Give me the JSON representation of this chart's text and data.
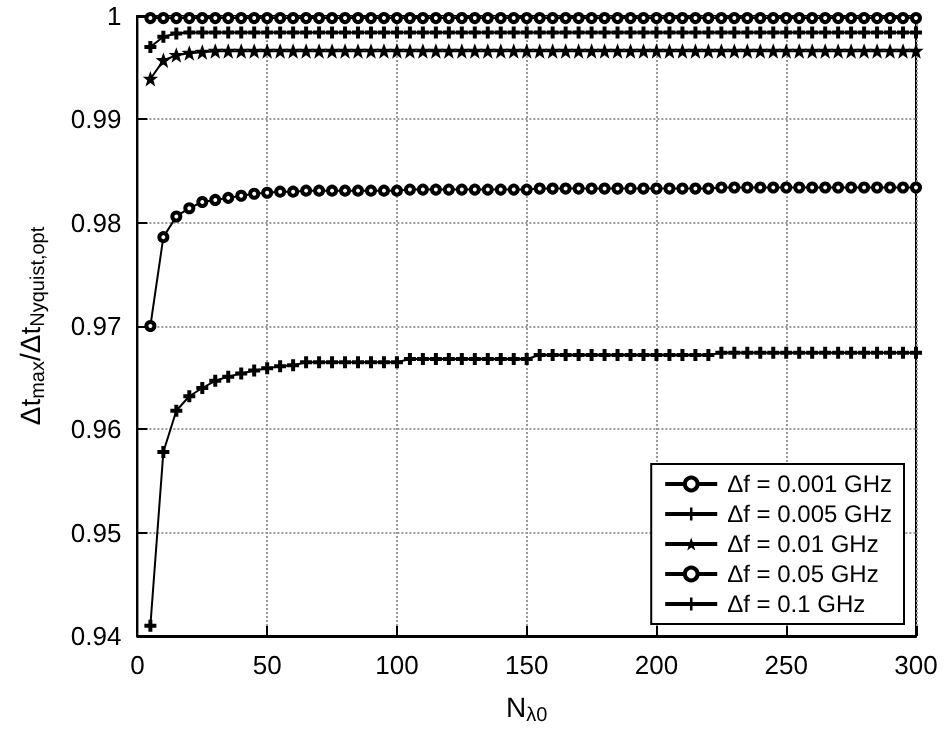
{
  "chart_data": {
    "type": "line",
    "xlabel": "N$_{λ0}$",
    "ylabel": "Δt$_{max}$/Δt$_{Nyquist,opt}$",
    "x": [
      5,
      10,
      15,
      20,
      25,
      30,
      35,
      40,
      45,
      50,
      55,
      60,
      65,
      70,
      75,
      80,
      85,
      90,
      95,
      100,
      105,
      110,
      115,
      120,
      125,
      130,
      135,
      140,
      145,
      150,
      155,
      160,
      165,
      170,
      175,
      180,
      185,
      190,
      195,
      200,
      205,
      210,
      215,
      220,
      225,
      230,
      235,
      240,
      245,
      250,
      255,
      260,
      265,
      270,
      275,
      280,
      285,
      290,
      295,
      300
    ],
    "series": [
      {
        "name": "Δf = 0.001 GHz",
        "color": "#000000",
        "marker": "circle",
        "values": [
          0.9998,
          0.9998,
          0.9998,
          0.9998,
          0.9998,
          0.9998,
          0.9998,
          0.9998,
          0.9998,
          0.9998,
          0.9998,
          0.9998,
          0.9998,
          0.9998,
          0.9998,
          0.9998,
          0.9998,
          0.9998,
          0.9998,
          0.9998,
          0.9998,
          0.9998,
          0.9998,
          0.9998,
          0.9998,
          0.9998,
          0.9998,
          0.9998,
          0.9998,
          0.9998,
          0.9998,
          0.9998,
          0.9998,
          0.9998,
          0.9998,
          0.9998,
          0.9998,
          0.9998,
          0.9998,
          0.9998,
          0.9998,
          0.9998,
          0.9998,
          0.9998,
          0.9998,
          0.9998,
          0.9998,
          0.9998,
          0.9998,
          0.9998,
          0.9998,
          0.9998,
          0.9998,
          0.9998,
          0.9998,
          0.9998,
          0.9998,
          0.9998,
          0.9998,
          0.9998
        ]
      },
      {
        "name": "Δf = 0.005 GHz",
        "color": "#000000",
        "marker": "cross",
        "values": [
          0.997,
          0.998,
          0.9983,
          0.9984,
          0.9984,
          0.9984,
          0.9984,
          0.9984,
          0.9984,
          0.9984,
          0.9984,
          0.9984,
          0.9984,
          0.9984,
          0.9984,
          0.9984,
          0.9984,
          0.9984,
          0.9984,
          0.9984,
          0.9984,
          0.9984,
          0.9984,
          0.9984,
          0.9984,
          0.9984,
          0.9984,
          0.9984,
          0.9984,
          0.9984,
          0.9984,
          0.9984,
          0.9984,
          0.9984,
          0.9984,
          0.9984,
          0.9984,
          0.9984,
          0.9984,
          0.9984,
          0.9984,
          0.9984,
          0.9984,
          0.9984,
          0.9984,
          0.9984,
          0.9984,
          0.9984,
          0.9984,
          0.9984,
          0.9984,
          0.9984,
          0.9984,
          0.9984,
          0.9984,
          0.9984,
          0.9984,
          0.9984,
          0.9984,
          0.9984
        ]
      },
      {
        "name": "Δf = 0.01 GHz",
        "color": "#000000",
        "marker": "star",
        "values": [
          0.9939,
          0.9957,
          0.9962,
          0.9964,
          0.9965,
          0.9966,
          0.9966,
          0.9966,
          0.9966,
          0.9966,
          0.9966,
          0.9966,
          0.9966,
          0.9966,
          0.9966,
          0.9966,
          0.9966,
          0.9966,
          0.9966,
          0.9966,
          0.9966,
          0.9966,
          0.9966,
          0.9966,
          0.9966,
          0.9966,
          0.9966,
          0.9966,
          0.9966,
          0.9966,
          0.9966,
          0.9966,
          0.9966,
          0.9966,
          0.9966,
          0.9966,
          0.9966,
          0.9966,
          0.9966,
          0.9966,
          0.9966,
          0.9966,
          0.9966,
          0.9966,
          0.9966,
          0.9966,
          0.9966,
          0.9966,
          0.9966,
          0.9966,
          0.9966,
          0.9966,
          0.9966,
          0.9966,
          0.9966,
          0.9966,
          0.9966,
          0.9966,
          0.9966,
          0.9966
        ]
      },
      {
        "name": "Δf = 0.05 GHz",
        "color": "#000000",
        "marker": "circle",
        "values": [
          0.97,
          0.9786,
          0.9806,
          0.9814,
          0.982,
          0.9822,
          0.9824,
          0.9826,
          0.9828,
          0.9829,
          0.983,
          0.983,
          0.9831,
          0.9831,
          0.9831,
          0.9831,
          0.9831,
          0.9831,
          0.9831,
          0.9831,
          0.9832,
          0.9832,
          0.9832,
          0.9832,
          0.9832,
          0.9832,
          0.9832,
          0.9832,
          0.9832,
          0.9832,
          0.9833,
          0.9833,
          0.9833,
          0.9833,
          0.9833,
          0.9833,
          0.9833,
          0.9833,
          0.9833,
          0.9833,
          0.9833,
          0.9833,
          0.9833,
          0.9833,
          0.9834,
          0.9834,
          0.9834,
          0.9834,
          0.9834,
          0.9834,
          0.9834,
          0.9834,
          0.9834,
          0.9834,
          0.9834,
          0.9834,
          0.9834,
          0.9834,
          0.9834,
          0.9834
        ]
      },
      {
        "name": "Δf = 0.1 GHz",
        "color": "#000000",
        "marker": "cross",
        "values": [
          0.941,
          0.9578,
          0.9618,
          0.9632,
          0.964,
          0.9647,
          0.9651,
          0.9654,
          0.9657,
          0.9659,
          0.9661,
          0.9662,
          0.9665,
          0.9665,
          0.9665,
          0.9665,
          0.9665,
          0.9665,
          0.9665,
          0.9665,
          0.9668,
          0.9668,
          0.9668,
          0.9668,
          0.9668,
          0.9668,
          0.9668,
          0.9668,
          0.9668,
          0.9668,
          0.9672,
          0.9672,
          0.9672,
          0.9672,
          0.9672,
          0.9672,
          0.9672,
          0.9672,
          0.9672,
          0.9672,
          0.9672,
          0.9672,
          0.9672,
          0.9672,
          0.9674,
          0.9674,
          0.9674,
          0.9674,
          0.9674,
          0.9674,
          0.9674,
          0.9674,
          0.9674,
          0.9674,
          0.9674,
          0.9674,
          0.9674,
          0.9674,
          0.9674,
          0.9674
        ]
      }
    ],
    "xlim": [
      0,
      300
    ],
    "xticks": [
      0,
      50,
      100,
      150,
      200,
      250,
      300
    ],
    "ylim": [
      0.94,
      1
    ],
    "yticks": [
      0.94,
      0.95,
      0.96,
      0.97,
      0.98,
      0.99,
      1
    ],
    "grid": true,
    "legend": "bottom right",
    "line_style": "solid"
  }
}
